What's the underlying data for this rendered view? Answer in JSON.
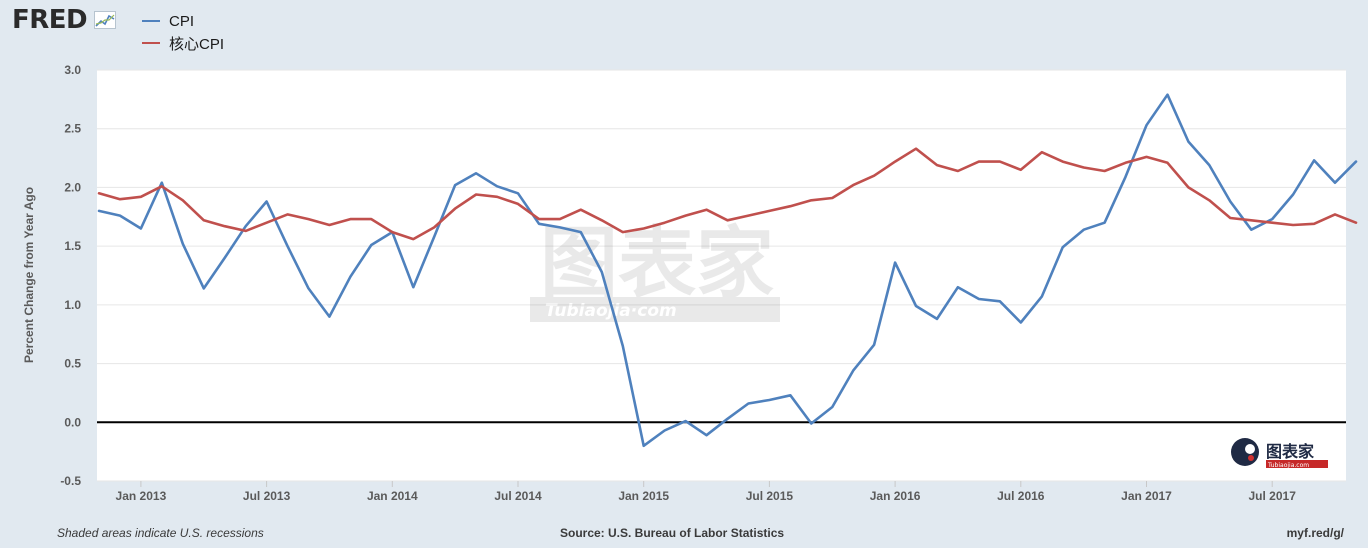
{
  "header": {
    "logo_text": "FRED",
    "logo_icon": "line-graph-icon",
    "legend": [
      {
        "label": "CPI",
        "color": "#4f81bd"
      },
      {
        "label": "核心CPI",
        "color": "#c0504d"
      }
    ]
  },
  "chart_data": {
    "type": "line",
    "title": "",
    "xlabel": "",
    "ylabel": "Percent Change from Year Ago",
    "ylim": [
      -0.5,
      3.0
    ],
    "yticks": [
      -0.5,
      0.0,
      0.5,
      1.0,
      1.5,
      2.0,
      2.5,
      3.0
    ],
    "ytick_labels": [
      "-0.5",
      "0.0",
      "0.5",
      "1.0",
      "1.5",
      "2.0",
      "2.5",
      "3.0"
    ],
    "xtick_labels": [
      "Jan 2013",
      "Jul 2013",
      "Jan 2014",
      "Jul 2014",
      "Jan 2015",
      "Jul 2015",
      "Jan 2016",
      "Jul 2016",
      "Jan 2017",
      "Jul 2017"
    ],
    "x": [
      "2012-11",
      "2012-12",
      "2013-01",
      "2013-02",
      "2013-03",
      "2013-04",
      "2013-05",
      "2013-06",
      "2013-07",
      "2013-08",
      "2013-09",
      "2013-10",
      "2013-11",
      "2013-12",
      "2014-01",
      "2014-02",
      "2014-03",
      "2014-04",
      "2014-05",
      "2014-06",
      "2014-07",
      "2014-08",
      "2014-09",
      "2014-10",
      "2014-11",
      "2014-12",
      "2015-01",
      "2015-02",
      "2015-03",
      "2015-04",
      "2015-05",
      "2015-06",
      "2015-07",
      "2015-08",
      "2015-09",
      "2015-10",
      "2015-11",
      "2015-12",
      "2016-01",
      "2016-02",
      "2016-03",
      "2016-04",
      "2016-05",
      "2016-06",
      "2016-07",
      "2016-08",
      "2016-09",
      "2016-10",
      "2016-11",
      "2016-12",
      "2017-01",
      "2017-02",
      "2017-03",
      "2017-04",
      "2017-05",
      "2017-06",
      "2017-07",
      "2017-08",
      "2017-09",
      "2017-10",
      "2017-11"
    ],
    "series": [
      {
        "name": "CPI",
        "color": "#4f81bd",
        "values": [
          1.8,
          1.76,
          1.65,
          2.04,
          1.52,
          1.14,
          1.4,
          1.67,
          1.88,
          1.5,
          1.14,
          0.9,
          1.24,
          1.51,
          1.62,
          1.15,
          1.58,
          2.02,
          2.12,
          2.01,
          1.95,
          1.69,
          1.66,
          1.62,
          1.28,
          0.65,
          -0.2,
          -0.07,
          0.01,
          -0.11,
          0.03,
          0.16,
          0.19,
          0.23,
          -0.01,
          0.13,
          0.44,
          0.66,
          1.36,
          0.99,
          0.88,
          1.15,
          1.05,
          1.03,
          0.85,
          1.07,
          1.49,
          1.64,
          1.7,
          2.09,
          2.53,
          2.79,
          2.39,
          2.19,
          1.88,
          1.64,
          1.73,
          1.94,
          2.23,
          2.04,
          2.22
        ]
      },
      {
        "name": "核心CPI",
        "color": "#c0504d",
        "values": [
          1.95,
          1.9,
          1.92,
          2.01,
          1.89,
          1.72,
          1.67,
          1.63,
          1.7,
          1.77,
          1.73,
          1.68,
          1.73,
          1.73,
          1.62,
          1.56,
          1.66,
          1.82,
          1.94,
          1.92,
          1.86,
          1.73,
          1.73,
          1.81,
          1.72,
          1.62,
          1.65,
          1.7,
          1.76,
          1.81,
          1.72,
          1.76,
          1.8,
          1.84,
          1.89,
          1.91,
          2.02,
          2.1,
          2.22,
          2.33,
          2.19,
          2.14,
          2.22,
          2.22,
          2.15,
          2.3,
          2.22,
          2.17,
          2.14,
          2.21,
          2.26,
          2.21,
          2.0,
          1.89,
          1.74,
          1.72,
          1.7,
          1.68,
          1.69,
          1.77,
          1.7
        ]
      }
    ],
    "grid": true,
    "legend_position": "top-left"
  },
  "footer": {
    "left": "Shaded areas indicate U.S. recessions",
    "center": "Source: U.S. Bureau of Labor Statistics",
    "right": "myf.red/g/"
  },
  "watermark": {
    "main_text": "图表家",
    "sub_text": "Tubiaojia·com",
    "corner_text": "图表家",
    "corner_sub": "Tubiaojia.com"
  }
}
